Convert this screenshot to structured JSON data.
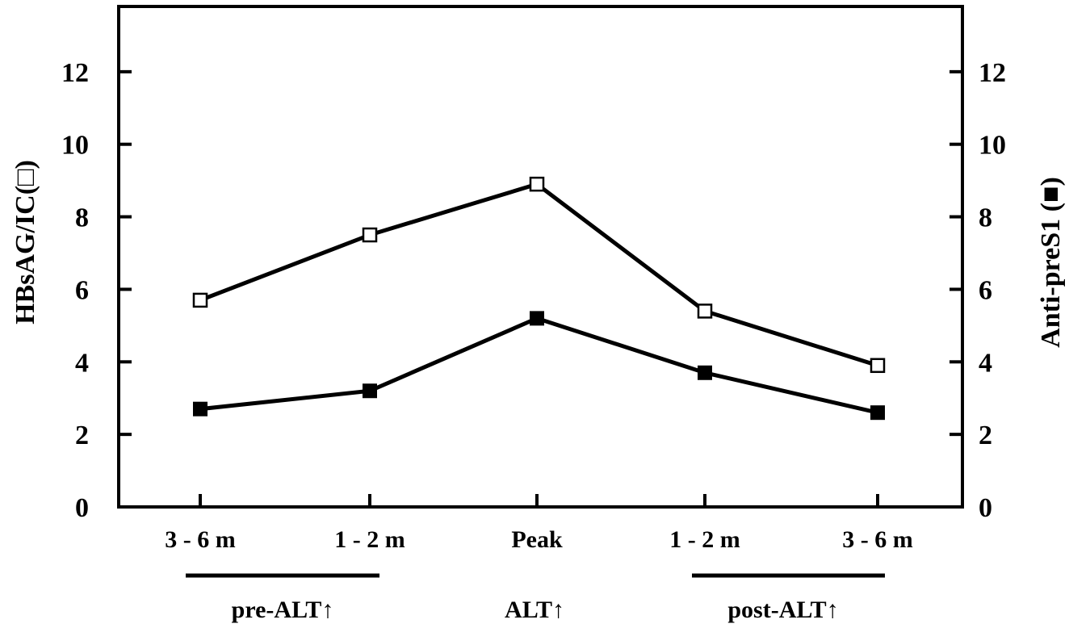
{
  "chart_data": {
    "type": "line",
    "categories": [
      "3 - 6 m",
      "1 - 2 m",
      "Peak",
      "1 - 2 m",
      "3 - 6 m"
    ],
    "ylabel_left": "HBsAG/IC(□)",
    "ylabel_right": "Anti-preS1 (■)",
    "ylim": [
      0,
      13.8
    ],
    "yticks_left": [
      "0",
      "2",
      "4",
      "6",
      "8",
      "10",
      "12"
    ],
    "yticks_right": [
      "0",
      "2",
      "4",
      "6",
      "8",
      "10",
      "12"
    ],
    "series": [
      {
        "marker": "open-square",
        "values": [
          5.7,
          7.5,
          8.9,
          5.4,
          3.9
        ]
      },
      {
        "marker": "filled-square",
        "values": [
          2.7,
          3.2,
          5.2,
          3.7,
          2.6
        ]
      }
    ],
    "groups": [
      {
        "label": "pre-ALT↑"
      },
      {
        "label": "ALT↑"
      },
      {
        "label": "post-ALT↑"
      }
    ],
    "grid": false,
    "legend": "none"
  }
}
